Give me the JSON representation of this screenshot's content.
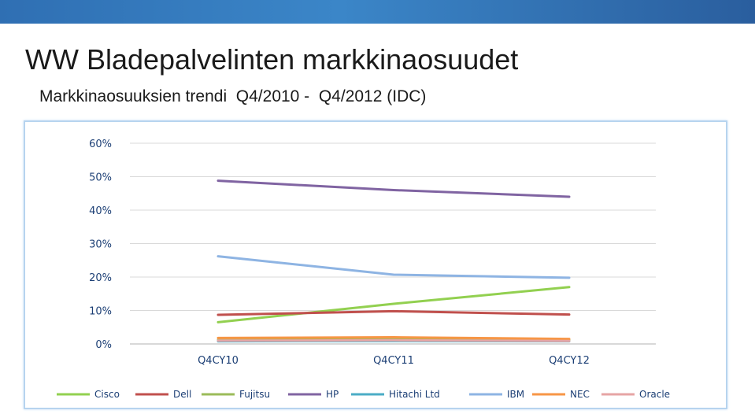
{
  "slide": {
    "title": "WW Bladepalvelinten markkinaosuudet",
    "subtitle": "Markkinaosuuksien trendi  Q4/2010 -  Q4/2012 (IDC)"
  },
  "chart_data": {
    "type": "line",
    "title": "",
    "xlabel": "",
    "ylabel": "",
    "categories": [
      "Q4CY10",
      "Q4CY11",
      "Q4CY12"
    ],
    "ylim": [
      0,
      60
    ],
    "yticks": [
      "0%",
      "10%",
      "20%",
      "30%",
      "40%",
      "50%",
      "60%"
    ],
    "grid": true,
    "legend_position": "bottom",
    "series": [
      {
        "name": "Cisco",
        "color": "#92d050",
        "values": [
          6.5,
          12.0,
          17.0
        ]
      },
      {
        "name": "Dell",
        "color": "#c0504d",
        "values": [
          8.7,
          9.8,
          8.8
        ]
      },
      {
        "name": "Fujitsu",
        "color": "#9bbb59",
        "values": [
          1.2,
          1.5,
          1.2
        ]
      },
      {
        "name": "HP",
        "color": "#8064a2",
        "values": [
          48.8,
          46.0,
          44.0
        ]
      },
      {
        "name": "Hitachi Ltd",
        "color": "#4bacc6",
        "values": [
          0.8,
          0.9,
          0.8
        ]
      },
      {
        "name": "IBM",
        "color": "#8eb4e3",
        "values": [
          26.2,
          20.7,
          19.8
        ]
      },
      {
        "name": "NEC",
        "color": "#f79646",
        "values": [
          1.8,
          2.0,
          1.5
        ]
      },
      {
        "name": "Oracle",
        "color": "#e6a5a5",
        "values": [
          1.0,
          1.1,
          0.9
        ]
      }
    ]
  }
}
